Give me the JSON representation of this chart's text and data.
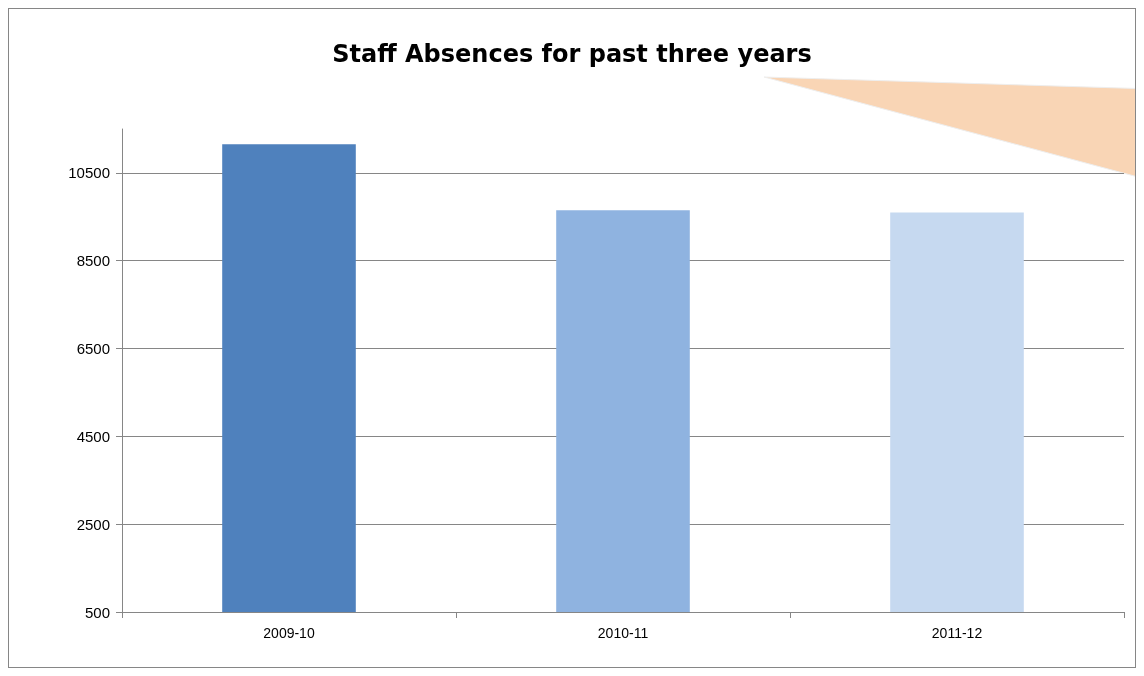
{
  "chart_data": {
    "type": "bar",
    "title": "Staff Absences for past three years",
    "categories": [
      "2009-10",
      "2010-11",
      "2011-12"
    ],
    "values": [
      11150,
      9650,
      9600
    ],
    "colors": [
      "#4f81bd",
      "#8fb3e0",
      "#c6d9f0"
    ],
    "ylim": [
      500,
      11500
    ],
    "yticks": [
      500,
      2500,
      4500,
      6500,
      8500,
      10500
    ],
    "grid": "y"
  }
}
